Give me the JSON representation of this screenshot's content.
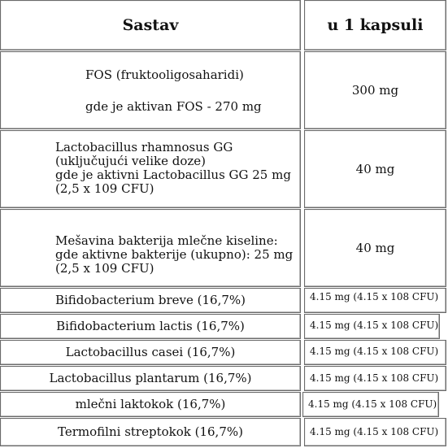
{
  "header": {
    "col1": "Sastav",
    "col2": "u 1 kapsuli"
  },
  "rows": [
    {
      "lines": [
        "FOS (fruktooligosaharidi)",
        "gde je aktivan FOS - 270 mg"
      ],
      "value": "300 mg"
    },
    {
      "lines": [
        "Lactobacillus rhamnosus GG",
        "(uključujući velike doze)",
        "gde je aktivni Lactobacillus GG 25 mg",
        "(2,5 x 109 CFU)"
      ],
      "value": "40 mg"
    },
    {
      "lines": [
        "Mešavina bakterija mlečne kiseline:",
        "gde aktivne bakterije (ukupno): 25 mg",
        "(2,5 x 109 CFU)"
      ],
      "value": "40 mg"
    },
    {
      "name": "Bifidobacterium breve (16,7%)",
      "value": "4.15 mg  (4.15 x 108 CFU)"
    },
    {
      "name": "Bifidobacterium lactis (16,7%)",
      "value": "4.15 mg  (4.15 x 108 CFU)"
    },
    {
      "name": "Lactobacillus casei (16,7%)",
      "value": "4.15 mg  (4.15 x 108 CFU)"
    },
    {
      "name": "Lactobacillus plantarum (16,7%)",
      "value": "4.15 mg  (4.15 x 108 CFU)"
    },
    {
      "name": "mlečni laktokok (16,7%)",
      "value": "4.15 mg  (4.15 x 108 CFU)"
    },
    {
      "name": "Termofilni streptokok (16,7%)",
      "value": "4.15 mg  (4.15 x 108 CFU)"
    }
  ]
}
